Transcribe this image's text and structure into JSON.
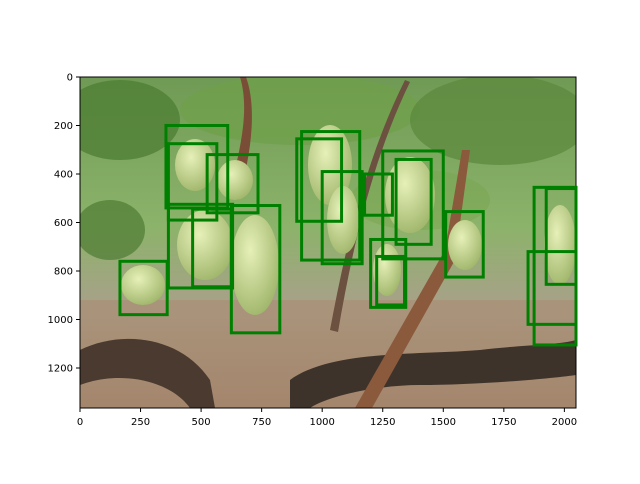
{
  "chart_data": {
    "type": "image-with-bounding-boxes",
    "title": "",
    "xlabel": "",
    "ylabel": "",
    "xlim": [
      0,
      2048
    ],
    "ylim": [
      1365,
      0
    ],
    "x_ticks": [
      0,
      250,
      500,
      750,
      1000,
      1250,
      1500,
      1750,
      2000
    ],
    "y_ticks": [
      0,
      200,
      400,
      600,
      800,
      1000,
      1200
    ],
    "grid": false,
    "box_color": "#008000",
    "image_description": "vineyard photo with green grape clusters on vines",
    "boxes": [
      {
        "x0": 355,
        "y0": 200,
        "x1": 610,
        "y1": 540
      },
      {
        "x0": 365,
        "y0": 275,
        "x1": 565,
        "y1": 590
      },
      {
        "x0": 525,
        "y0": 320,
        "x1": 735,
        "y1": 560
      },
      {
        "x0": 365,
        "y0": 525,
        "x1": 630,
        "y1": 870
      },
      {
        "x0": 465,
        "y0": 545,
        "x1": 625,
        "y1": 865
      },
      {
        "x0": 625,
        "y0": 530,
        "x1": 825,
        "y1": 1055
      },
      {
        "x0": 165,
        "y0": 760,
        "x1": 360,
        "y1": 980
      },
      {
        "x0": 915,
        "y0": 225,
        "x1": 1155,
        "y1": 755
      },
      {
        "x0": 895,
        "y0": 255,
        "x1": 1080,
        "y1": 595
      },
      {
        "x0": 1000,
        "y0": 390,
        "x1": 1165,
        "y1": 770
      },
      {
        "x0": 1175,
        "y0": 400,
        "x1": 1290,
        "y1": 570
      },
      {
        "x0": 1250,
        "y0": 305,
        "x1": 1500,
        "y1": 750
      },
      {
        "x0": 1305,
        "y0": 340,
        "x1": 1450,
        "y1": 690
      },
      {
        "x0": 1200,
        "y0": 670,
        "x1": 1345,
        "y1": 950
      },
      {
        "x0": 1225,
        "y0": 740,
        "x1": 1340,
        "y1": 940
      },
      {
        "x0": 1510,
        "y0": 555,
        "x1": 1665,
        "y1": 825
      },
      {
        "x0": 1875,
        "y0": 455,
        "x1": 2048,
        "y1": 1105
      },
      {
        "x0": 1925,
        "y0": 460,
        "x1": 2048,
        "y1": 855
      },
      {
        "x0": 1850,
        "y0": 720,
        "x1": 2048,
        "y1": 1020
      }
    ]
  }
}
